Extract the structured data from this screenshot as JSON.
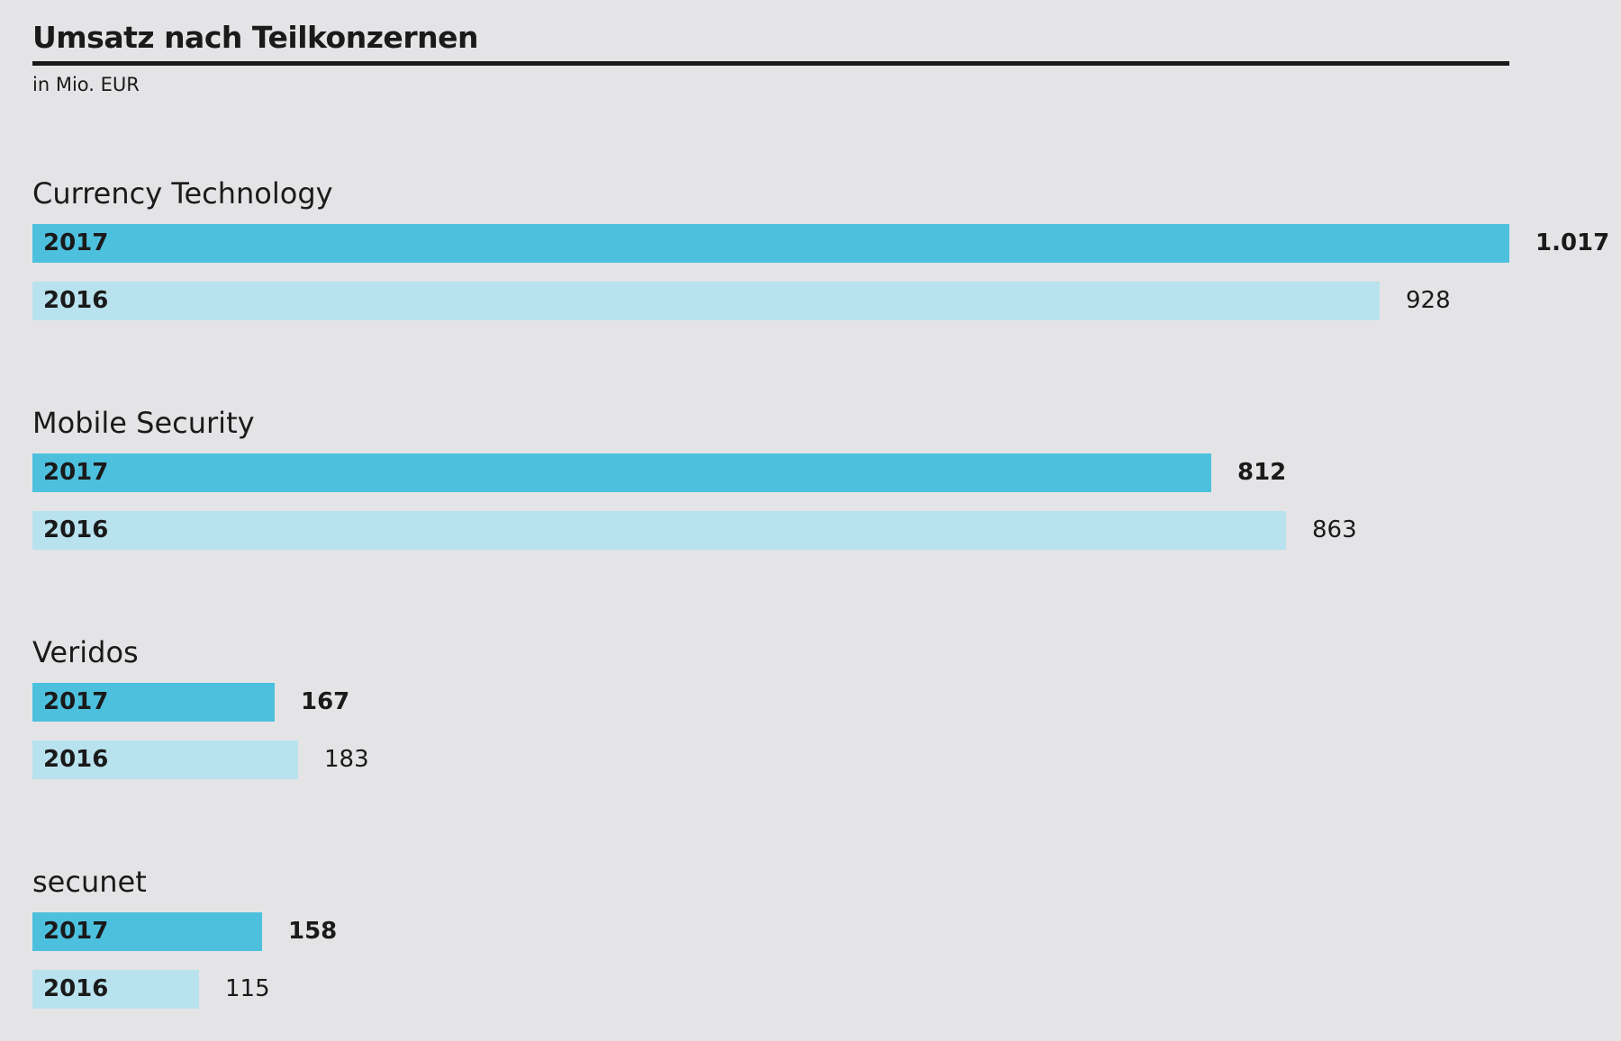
{
  "chart_data": {
    "type": "bar",
    "orientation": "horizontal",
    "title": "Umsatz nach Teilkonzernen",
    "subtitle": "in Mio. EUR",
    "categories": [
      "Currency Technology",
      "Mobile Security",
      "Veridos",
      "secunet"
    ],
    "series": [
      {
        "name": "2017",
        "values": [
          1017,
          812,
          167,
          158
        ],
        "display": [
          "1.017",
          "812",
          "167",
          "158"
        ],
        "color": "#4dc0de"
      },
      {
        "name": "2016",
        "values": [
          928,
          863,
          183,
          115
        ],
        "display": [
          "928",
          "863",
          "183",
          "115"
        ],
        "color": "#b8e2ee"
      }
    ],
    "xlim": [
      0,
      1017
    ],
    "grid": false,
    "legend": "none"
  }
}
